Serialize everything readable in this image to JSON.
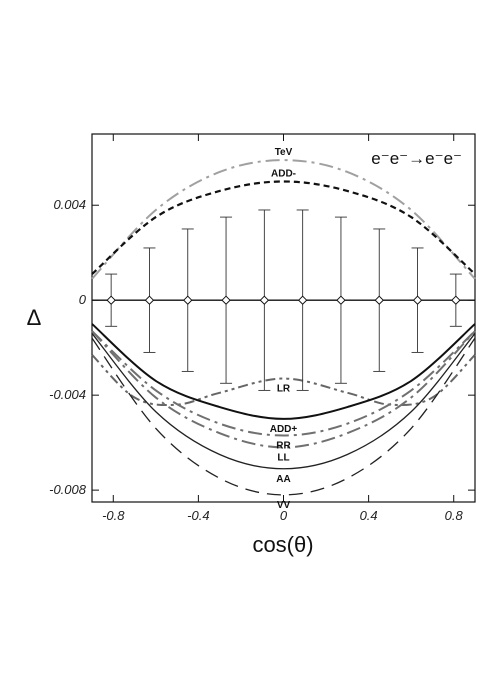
{
  "chart_data": {
    "type": "line",
    "process_label": "e⁻e⁻→e⁻e⁻",
    "xlabel": "cos(θ)",
    "ylabel": "Δ",
    "xlim": [
      -0.9,
      0.9
    ],
    "ylim": [
      -0.0085,
      0.007
    ],
    "xticks": [
      -0.8,
      -0.4,
      0,
      0.4,
      0.8
    ],
    "xtick_labels": [
      "-0.8",
      "-0.4",
      "0",
      "0.4",
      "0.8"
    ],
    "yticks": [
      -0.008,
      -0.004,
      0,
      0.004
    ],
    "ytick_labels": [
      "-0.008",
      "-0.004",
      "0",
      "0.004"
    ],
    "grid": false,
    "series": [
      {
        "name": "TeV",
        "style": "dashdot",
        "color": "#a0a0a0",
        "x": [
          -0.9,
          -0.6,
          -0.3,
          0,
          0.3,
          0.6,
          0.9
        ],
        "y": [
          0.0009,
          0.0038,
          0.0054,
          0.0059,
          0.0054,
          0.0038,
          0.0009
        ]
      },
      {
        "name": "ADD-",
        "style": "dashed-bold",
        "color": "#111111",
        "x": [
          -0.9,
          -0.6,
          -0.3,
          0,
          0.3,
          0.6,
          0.9
        ],
        "y": [
          0.0011,
          0.0035,
          0.0046,
          0.005,
          0.0046,
          0.0035,
          0.0011
        ]
      },
      {
        "name": "LR",
        "style": "dashdotdot",
        "color": "#666666",
        "x": [
          -0.9,
          -0.7,
          -0.5,
          -0.3,
          0,
          0.3,
          0.5,
          0.7,
          0.9
        ],
        "y": [
          -0.0023,
          -0.0041,
          -0.0044,
          -0.0039,
          -0.0033,
          -0.0039,
          -0.0044,
          -0.0041,
          -0.0023
        ]
      },
      {
        "name": "ADD+",
        "style": "solid-bold",
        "color": "#111111",
        "x": [
          -0.9,
          -0.6,
          -0.3,
          0,
          0.3,
          0.6,
          0.9
        ],
        "y": [
          -0.001,
          -0.0034,
          -0.0045,
          -0.005,
          -0.0045,
          -0.0034,
          -0.001
        ]
      },
      {
        "name": "RR",
        "style": "dashdot",
        "color": "#707070",
        "x": [
          -0.9,
          -0.6,
          -0.3,
          0,
          0.3,
          0.6,
          0.9
        ],
        "y": [
          -0.0013,
          -0.0038,
          -0.0052,
          -0.0057,
          -0.0052,
          -0.0038,
          -0.0013
        ]
      },
      {
        "name": "LL",
        "style": "dashdot",
        "color": "#707070",
        "x": [
          -0.9,
          -0.6,
          -0.3,
          0,
          0.3,
          0.6,
          0.9
        ],
        "y": [
          -0.0013,
          -0.0041,
          -0.0056,
          -0.0062,
          -0.0056,
          -0.0041,
          -0.0013
        ]
      },
      {
        "name": "AA",
        "style": "solid",
        "color": "#222222",
        "x": [
          -0.9,
          -0.6,
          -0.3,
          0,
          0.3,
          0.6,
          0.9
        ],
        "y": [
          -0.0014,
          -0.0047,
          -0.0065,
          -0.0071,
          -0.0065,
          -0.0047,
          -0.0014
        ]
      },
      {
        "name": "VV",
        "style": "dashed",
        "color": "#222222",
        "x": [
          -0.9,
          -0.6,
          -0.3,
          0,
          0.3,
          0.6,
          0.9
        ],
        "y": [
          -0.0016,
          -0.0054,
          -0.0075,
          -0.0082,
          -0.0075,
          -0.0054,
          -0.0016
        ]
      }
    ],
    "points": {
      "x": [
        -0.81,
        -0.63,
        -0.45,
        -0.27,
        -0.09,
        0.09,
        0.27,
        0.45,
        0.63,
        0.81
      ],
      "y": [
        0,
        0,
        0,
        0,
        0,
        0,
        0,
        0,
        0,
        0
      ],
      "err": [
        0.0011,
        0.0022,
        0.003,
        0.0035,
        0.0038,
        0.0038,
        0.0035,
        0.003,
        0.0022,
        0.0011
      ]
    }
  }
}
